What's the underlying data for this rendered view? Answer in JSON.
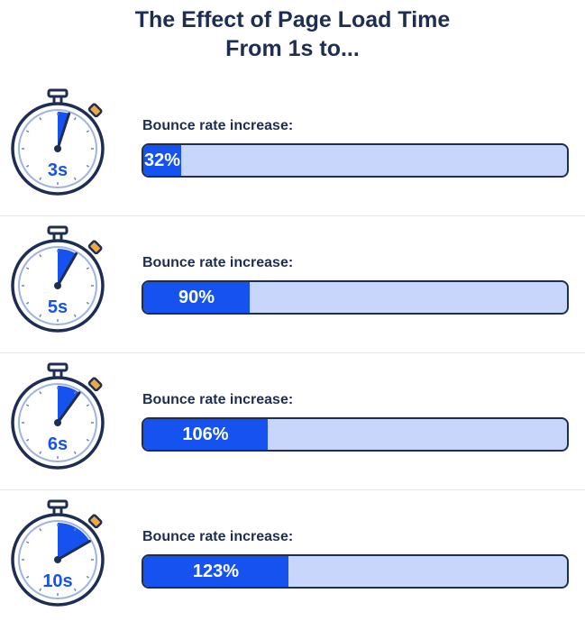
{
  "title_line1": "The Effect of Page Load Time",
  "title_line2": "From 1s to...",
  "colors": {
    "accent": "#1652f0",
    "track": "#c9d6fc",
    "ink": "#1e2d52",
    "knob": "#f2a93b"
  },
  "chart_data": {
    "type": "bar",
    "orientation": "horizontal",
    "title": "The Effect of Page Load Time From 1s to...",
    "categories": [
      "3s",
      "5s",
      "6s",
      "10s"
    ],
    "series_label": "Bounce rate increase:",
    "values": [
      32,
      90,
      106,
      123
    ],
    "value_labels": [
      "32%",
      "90%",
      "106%",
      "123%"
    ],
    "unit": "%"
  },
  "rows": [
    {
      "time": "3s",
      "label": "Bounce rate increase:",
      "value_text": "32%",
      "value": 32
    },
    {
      "time": "5s",
      "label": "Bounce rate increase:",
      "value_text": "90%",
      "value": 90
    },
    {
      "time": "6s",
      "label": "Bounce rate increase:",
      "value_text": "106%",
      "value": 106
    },
    {
      "time": "10s",
      "label": "Bounce rate increase:",
      "value_text": "123%",
      "value": 123
    }
  ]
}
